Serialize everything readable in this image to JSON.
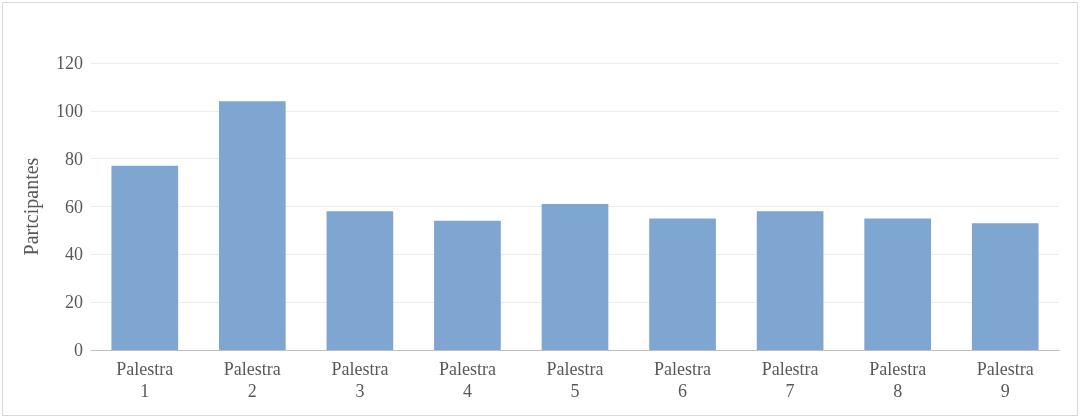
{
  "chart_data": {
    "type": "bar",
    "ylabel": "Partcipantes",
    "categories": [
      "Palestra 1",
      "Palestra 2",
      "Palestra 3",
      "Palestra 4",
      "Palestra 5",
      "Palestra 6",
      "Palestra 7",
      "Palestra 8",
      "Palestra 9"
    ],
    "values": [
      77,
      104,
      58,
      54,
      61,
      55,
      58,
      55,
      53
    ],
    "color": "#7fa5d1",
    "ylim": [
      0,
      120
    ],
    "yticks": [
      0,
      20,
      40,
      60,
      80,
      100,
      120
    ],
    "grid": "y"
  }
}
